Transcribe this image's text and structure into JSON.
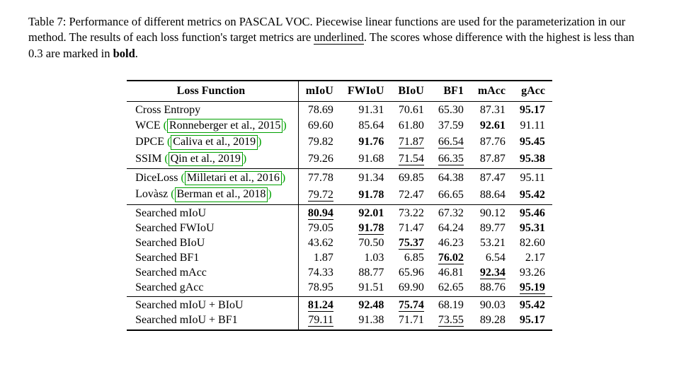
{
  "caption": {
    "prefix": "Table 7: Performance of different metrics on PASCAL VOC. Piecewise linear functions are used for the parameterization in our method. The results of each loss function's target metrics are ",
    "underlined_word": "underlined",
    "mid": ". The scores whose difference with the highest is less than 0.3 are marked in ",
    "bold_word": "bold",
    "suffix": "."
  },
  "columns": [
    "Loss Function",
    "mIoU",
    "FWIoU",
    "BIoU",
    "BF1",
    "mAcc",
    "gAcc"
  ],
  "sections": [
    {
      "rows": [
        {
          "label_plain": "Cross Entropy",
          "values": [
            "78.69",
            "91.31",
            "70.61",
            "65.30",
            "87.31",
            "95.17"
          ],
          "bold": [
            false,
            false,
            false,
            false,
            false,
            true
          ],
          "underline": [
            false,
            false,
            false,
            false,
            false,
            false
          ]
        },
        {
          "label_plain": "WCE ",
          "cite": "Ronneberger et al., 2015",
          "values": [
            "69.60",
            "85.64",
            "61.80",
            "37.59",
            "92.61",
            "91.11"
          ],
          "bold": [
            false,
            false,
            false,
            false,
            true,
            false
          ],
          "underline": [
            false,
            false,
            false,
            false,
            false,
            false
          ]
        },
        {
          "label_plain": "DPCE ",
          "cite": "Caliva et al., 2019",
          "values": [
            "79.82",
            "91.76",
            "71.87",
            "66.54",
            "87.76",
            "95.45"
          ],
          "bold": [
            false,
            true,
            false,
            false,
            false,
            true
          ],
          "underline": [
            false,
            false,
            true,
            true,
            false,
            false
          ]
        },
        {
          "label_plain": "SSIM ",
          "cite": "Qin et al., 2019",
          "values": [
            "79.26",
            "91.68",
            "71.54",
            "66.35",
            "87.87",
            "95.38"
          ],
          "bold": [
            false,
            false,
            false,
            false,
            false,
            true
          ],
          "underline": [
            false,
            false,
            true,
            true,
            false,
            false
          ]
        }
      ]
    },
    {
      "rows": [
        {
          "label_plain": "DiceLoss ",
          "cite": "Milletari et al., 2016",
          "values": [
            "77.78",
            "91.34",
            "69.85",
            "64.38",
            "87.47",
            "95.11"
          ],
          "bold": [
            false,
            false,
            false,
            false,
            false,
            false
          ],
          "underline": [
            false,
            false,
            false,
            false,
            false,
            false
          ]
        },
        {
          "label_plain": "Lovàsz ",
          "cite": "Berman et al., 2018",
          "values": [
            "79.72",
            "91.78",
            "72.47",
            "66.65",
            "88.64",
            "95.42"
          ],
          "bold": [
            false,
            true,
            false,
            false,
            false,
            true
          ],
          "underline": [
            true,
            false,
            false,
            false,
            false,
            false
          ]
        }
      ]
    },
    {
      "rows": [
        {
          "label_plain": "Searched mIoU",
          "values": [
            "80.94",
            "92.01",
            "73.22",
            "67.32",
            "90.12",
            "95.46"
          ],
          "bold": [
            true,
            true,
            false,
            false,
            false,
            true
          ],
          "underline": [
            true,
            false,
            false,
            false,
            false,
            false
          ]
        },
        {
          "label_plain": "Searched FWIoU",
          "values": [
            "79.05",
            "91.78",
            "71.47",
            "64.24",
            "89.77",
            "95.31"
          ],
          "bold": [
            false,
            true,
            false,
            false,
            false,
            true
          ],
          "underline": [
            false,
            true,
            false,
            false,
            false,
            false
          ]
        },
        {
          "label_plain": "Searched BIoU",
          "values": [
            "43.62",
            "70.50",
            "75.37",
            "46.23",
            "53.21",
            "82.60"
          ],
          "bold": [
            false,
            false,
            true,
            false,
            false,
            false
          ],
          "underline": [
            false,
            false,
            true,
            false,
            false,
            false
          ]
        },
        {
          "label_plain": "Searched BF1",
          "values": [
            "1.87",
            "1.03",
            "6.85",
            "76.02",
            "6.54",
            "2.17"
          ],
          "bold": [
            false,
            false,
            false,
            true,
            false,
            false
          ],
          "underline": [
            false,
            false,
            false,
            true,
            false,
            false
          ]
        },
        {
          "label_plain": "Searched mAcc",
          "values": [
            "74.33",
            "88.77",
            "65.96",
            "46.81",
            "92.34",
            "93.26"
          ],
          "bold": [
            false,
            false,
            false,
            false,
            true,
            false
          ],
          "underline": [
            false,
            false,
            false,
            false,
            true,
            false
          ]
        },
        {
          "label_plain": "Searched gAcc",
          "values": [
            "78.95",
            "91.51",
            "69.90",
            "62.65",
            "88.76",
            "95.19"
          ],
          "bold": [
            false,
            false,
            false,
            false,
            false,
            true
          ],
          "underline": [
            false,
            false,
            false,
            false,
            false,
            true
          ]
        }
      ]
    },
    {
      "last": true,
      "rows": [
        {
          "label_plain": "Searched mIoU + BIoU",
          "values": [
            "81.24",
            "92.48",
            "75.74",
            "68.19",
            "90.03",
            "95.42"
          ],
          "bold": [
            true,
            true,
            true,
            false,
            false,
            true
          ],
          "underline": [
            true,
            false,
            true,
            false,
            false,
            false
          ]
        },
        {
          "label_plain": "Searched mIoU + BF1",
          "values": [
            "79.11",
            "91.38",
            "71.71",
            "73.55",
            "89.28",
            "95.17"
          ],
          "bold": [
            false,
            false,
            false,
            false,
            false,
            true
          ],
          "underline": [
            true,
            false,
            false,
            true,
            false,
            false
          ]
        }
      ]
    }
  ],
  "style": {
    "cite_color": "#00a000",
    "font_family": "Times New Roman"
  }
}
